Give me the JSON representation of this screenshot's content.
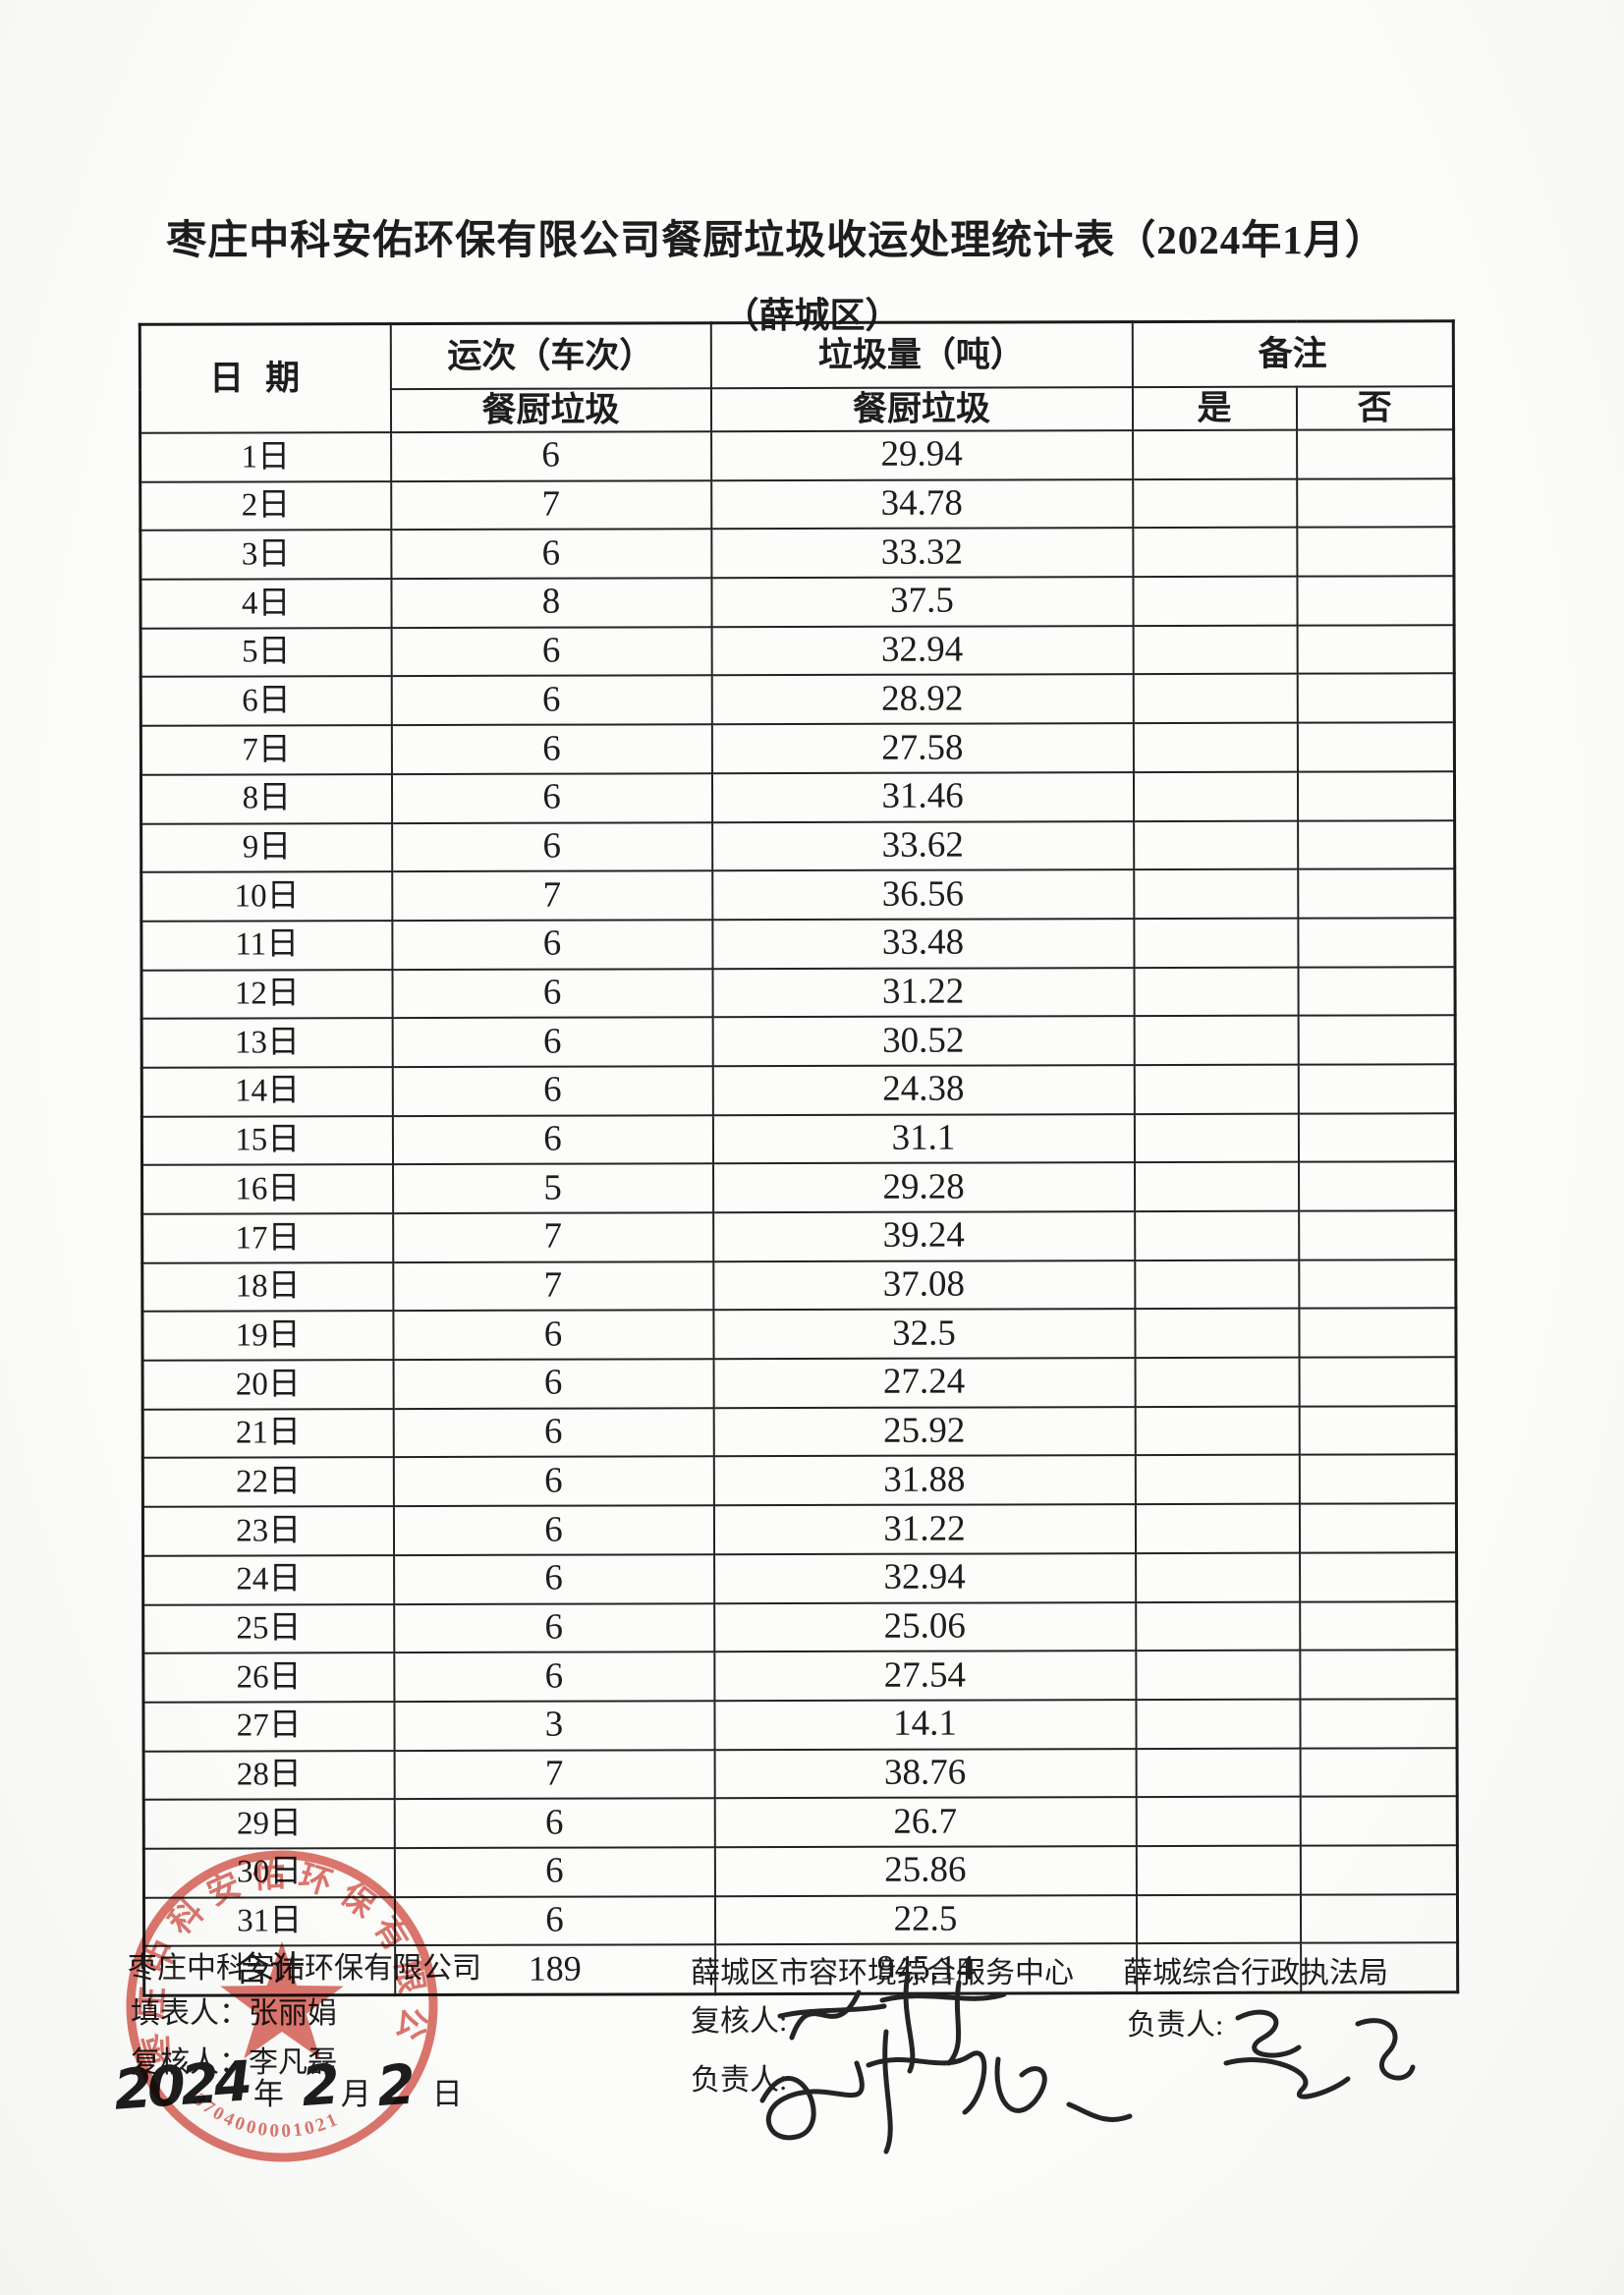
{
  "page": {
    "title": "枣庄中科安佑环保有限公司餐厨垃圾收运处理统计表（2024年1月）",
    "subtitle": "（薛城区）"
  },
  "table": {
    "headers": {
      "date": "日期",
      "trips": "运次（车次）",
      "trips_sub": "餐厨垃圾",
      "amount": "垃圾量（吨）",
      "amount_sub": "餐厨垃圾",
      "remark": "备注",
      "remark_yes": "是",
      "remark_no": "否"
    },
    "rows": [
      [
        "1日",
        "6",
        "29.94"
      ],
      [
        "2日",
        "7",
        "34.78"
      ],
      [
        "3日",
        "6",
        "33.32"
      ],
      [
        "4日",
        "8",
        "37.5"
      ],
      [
        "5日",
        "6",
        "32.94"
      ],
      [
        "6日",
        "6",
        "28.92"
      ],
      [
        "7日",
        "6",
        "27.58"
      ],
      [
        "8日",
        "6",
        "31.46"
      ],
      [
        "9日",
        "6",
        "33.62"
      ],
      [
        "10日",
        "7",
        "36.56"
      ],
      [
        "11日",
        "6",
        "33.48"
      ],
      [
        "12日",
        "6",
        "31.22"
      ],
      [
        "13日",
        "6",
        "30.52"
      ],
      [
        "14日",
        "6",
        "24.38"
      ],
      [
        "15日",
        "6",
        "31.1"
      ],
      [
        "16日",
        "5",
        "29.28"
      ],
      [
        "17日",
        "7",
        "39.24"
      ],
      [
        "18日",
        "7",
        "37.08"
      ],
      [
        "19日",
        "6",
        "32.5"
      ],
      [
        "20日",
        "6",
        "27.24"
      ],
      [
        "21日",
        "6",
        "25.92"
      ],
      [
        "22日",
        "6",
        "31.88"
      ],
      [
        "23日",
        "6",
        "31.22"
      ],
      [
        "24日",
        "6",
        "32.94"
      ],
      [
        "25日",
        "6",
        "25.06"
      ],
      [
        "26日",
        "6",
        "27.54"
      ],
      [
        "27日",
        "3",
        "14.1"
      ],
      [
        "28日",
        "7",
        "38.76"
      ],
      [
        "29日",
        "6",
        "26.7"
      ],
      [
        "30日",
        "6",
        "25.86"
      ],
      [
        "31日",
        "6",
        "22.5"
      ]
    ],
    "total_row": [
      "合计",
      "189",
      "945.14"
    ]
  },
  "footer": {
    "left": {
      "org": "枣庄中科安佑环保有限公司",
      "filler": "填表人：张丽娟",
      "reviewer": "复核人：李凡磊",
      "date_year": "2024",
      "year_char": "年",
      "date_month": "2",
      "month_char": "月",
      "date_day": "2",
      "day_char": "日"
    },
    "middle": {
      "org": "薛城区市容环境综合服务中心",
      "reviewer_label": "复核人:",
      "manager_label": "负责人:"
    },
    "right": {
      "org": "薛城综合行政执法局",
      "manager_label": "负责人:"
    }
  },
  "stamp": {
    "ring_text": "枣庄中科安佑环保有限公司",
    "number": "3704000001021",
    "color": "#d5544a"
  }
}
